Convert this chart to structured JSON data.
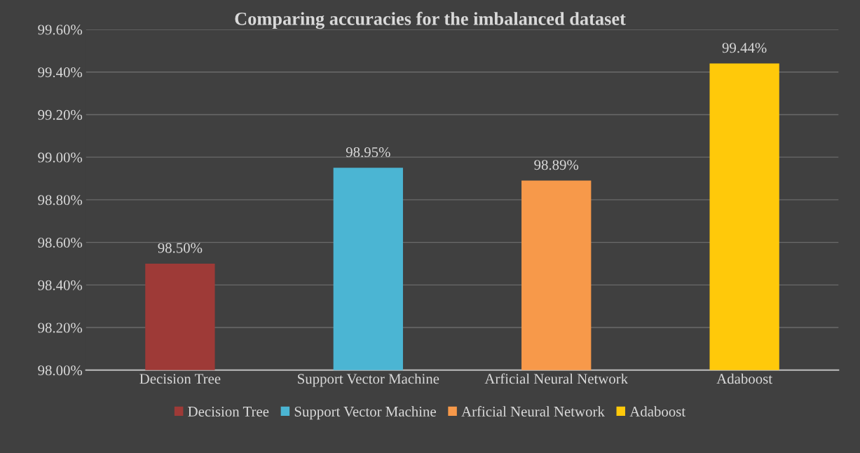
{
  "chart_data": {
    "type": "bar",
    "title": "Comparing accuracies for the imbalanced dataset",
    "categories": [
      "Decision Tree",
      "Support Vector Machine",
      "Arficial Neural Network",
      "Adaboost"
    ],
    "series": [
      {
        "name": "Decision Tree",
        "color": "#9e3a37",
        "values": [
          98.5,
          null,
          null,
          null
        ],
        "value_labels": [
          "98.50%",
          null,
          null,
          null
        ]
      },
      {
        "name": "Support Vector Machine",
        "color": "#4bb5d3",
        "values": [
          null,
          98.95,
          null,
          null
        ],
        "value_labels": [
          null,
          "98.95%",
          null,
          null
        ]
      },
      {
        "name": "Arficial Neural Network",
        "color": "#f7994a",
        "values": [
          null,
          null,
          98.89,
          null
        ],
        "value_labels": [
          null,
          null,
          "98.89%",
          null
        ]
      },
      {
        "name": "Adaboost",
        "color": "#ffc90a",
        "values": [
          null,
          null,
          null,
          99.44
        ],
        "value_labels": [
          null,
          null,
          null,
          "99.44%"
        ]
      }
    ],
    "ylim": [
      98.0,
      99.6
    ],
    "yticks": [
      {
        "value": 98.0,
        "label": "98.00%"
      },
      {
        "value": 98.2,
        "label": "98.20%"
      },
      {
        "value": 98.4,
        "label": "98.40%"
      },
      {
        "value": 98.6,
        "label": "98.60%"
      },
      {
        "value": 98.8,
        "label": "98.80%"
      },
      {
        "value": 99.0,
        "label": "99.00%"
      },
      {
        "value": 99.2,
        "label": "99.20%"
      },
      {
        "value": 99.4,
        "label": "99.40%"
      },
      {
        "value": 99.6,
        "label": "99.60%"
      }
    ],
    "grid": "y",
    "legend": "bottom"
  }
}
